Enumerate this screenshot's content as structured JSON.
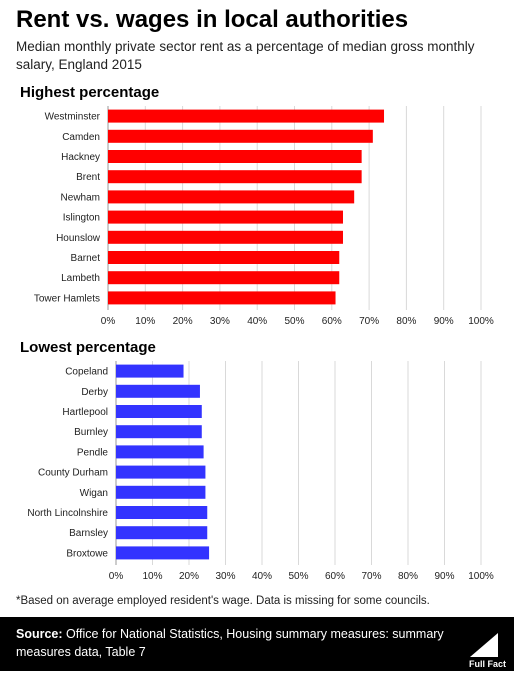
{
  "title": "Rent vs. wages in local authorities",
  "subtitle": "Median monthly private sector rent as a percentage of median gross monthly salary, England 2015",
  "chart_data": [
    {
      "type": "bar",
      "orientation": "horizontal",
      "title": "Highest percentage",
      "categories": [
        "Westminster",
        "Camden",
        "Hackney",
        "Brent",
        "Newham",
        "Islington",
        "Hounslow",
        "Barnet",
        "Lambeth",
        "Tower Hamlets"
      ],
      "values": [
        74,
        71,
        68,
        68,
        66,
        63,
        63,
        62,
        62,
        61
      ],
      "xlim": [
        0,
        100
      ],
      "ticks": [
        "0%",
        "10%",
        "20%",
        "30%",
        "40%",
        "50%",
        "60%",
        "70%",
        "80%",
        "90%",
        "100%"
      ],
      "color": "#ff0000",
      "grid": true
    },
    {
      "type": "bar",
      "orientation": "horizontal",
      "title": "Lowest percentage",
      "categories": [
        "Copeland",
        "Derby",
        "Hartlepool",
        "Burnley",
        "Pendle",
        "County Durham",
        "Wigan",
        "North Lincolnshire",
        "Barnsley",
        "Broxtowe"
      ],
      "values": [
        18.5,
        23,
        23.5,
        23.5,
        24,
        24.5,
        24.5,
        25,
        25,
        25.5
      ],
      "xlim": [
        0,
        100
      ],
      "ticks": [
        "0%",
        "10%",
        "20%",
        "30%",
        "40%",
        "50%",
        "60%",
        "70%",
        "80%",
        "90%",
        "100%"
      ],
      "color": "#3333ff",
      "grid": true
    }
  ],
  "footnote": "*Based on average employed resident's wage. Data is missing for some councils.",
  "footer": {
    "source_label": "Source:",
    "source_text": " Office for National Statistics,  Housing summary measures: summary measures data, Table 7",
    "logo_text": "Full Fact",
    "logo_icon": "full-fact-logo-icon"
  }
}
